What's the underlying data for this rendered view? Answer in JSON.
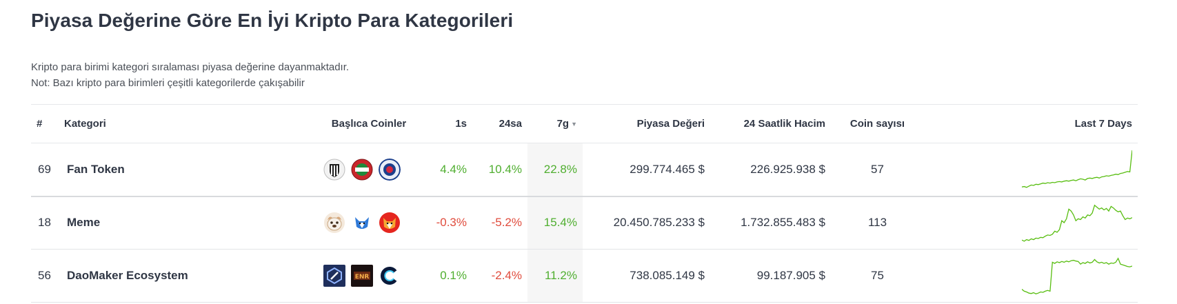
{
  "page": {
    "title": "Piyasa Değerine Göre En İyi Kripto Para Kategorileri",
    "desc_line1": "Kripto para birimi kategori sıralaması piyasa değerine dayanmaktadır.",
    "desc_line2": "Not: Bazı kripto para birimleri çeşitli kategorilerde çakışabilir"
  },
  "table": {
    "headers": {
      "rank": "#",
      "category": "Kategori",
      "top_coins": "Başlıca Coinler",
      "h1": "1s",
      "h24": "24sa",
      "d7": "7g",
      "market_cap": "Piyasa Değeri",
      "volume": "24 Saatlik Hacim",
      "coin_count": "Coin sayısı",
      "last7": "Last 7 Days"
    },
    "sort_column": "7g",
    "rows": [
      {
        "rank": "69",
        "name": "Fan Token",
        "coin_icons": [
          "santos-fc-icon",
          "karsiyaka-icon",
          "rangers-fc-icon"
        ],
        "h1": "4.4%",
        "h24": "10.4%",
        "d7": "22.8%",
        "h1_dir": "up",
        "h24_dir": "up",
        "d7_dir": "up",
        "market_cap": "299.774.465 $",
        "volume": "226.925.938 $",
        "coin_count": "57",
        "trend": [
          0.05,
          0.06,
          0.04,
          0.07,
          0.1,
          0.09,
          0.12,
          0.11,
          0.13,
          0.15,
          0.14,
          0.16,
          0.15,
          0.17,
          0.16,
          0.18,
          0.19,
          0.18,
          0.2,
          0.21,
          0.2,
          0.22,
          0.23,
          0.21,
          0.24,
          0.26,
          0.25,
          0.23,
          0.27,
          0.28,
          0.27,
          0.29,
          0.3,
          0.28,
          0.31,
          0.32,
          0.34,
          0.33,
          0.35,
          0.36,
          0.38,
          0.37,
          0.4,
          0.41,
          0.43,
          0.45,
          0.44,
          1.0
        ]
      },
      {
        "rank": "18",
        "name": "Meme",
        "coin_icons": [
          "dogecoin-icon",
          "shiba-inu-icon",
          "shiba-inu-red-icon"
        ],
        "h1": "-0.3%",
        "h24": "-5.2%",
        "d7": "15.4%",
        "h1_dir": "down",
        "h24_dir": "down",
        "d7_dir": "up",
        "market_cap": "20.450.785.233 $",
        "volume": "1.732.855.483 $",
        "coin_count": "113",
        "trend": [
          0.05,
          0.02,
          0.06,
          0.04,
          0.08,
          0.06,
          0.1,
          0.09,
          0.12,
          0.11,
          0.15,
          0.18,
          0.17,
          0.2,
          0.28,
          0.25,
          0.32,
          0.55,
          0.5,
          0.6,
          0.85,
          0.8,
          0.7,
          0.55,
          0.6,
          0.58,
          0.65,
          0.62,
          0.7,
          0.68,
          0.75,
          0.95,
          0.9,
          0.85,
          0.88,
          0.83,
          0.87,
          0.8,
          0.92,
          0.88,
          0.82,
          0.78,
          0.8,
          0.68,
          0.58,
          0.62,
          0.6,
          0.63
        ]
      },
      {
        "rank": "56",
        "name": "DaoMaker Ecosystem",
        "coin_icons": [
          "dao-maker-icon",
          "imx-game-icon",
          "c-token-icon"
        ],
        "h1": "0.1%",
        "h24": "-2.4%",
        "d7": "11.2%",
        "h1_dir": "up",
        "h24_dir": "down",
        "d7_dir": "up",
        "market_cap": "738.085.149 $",
        "volume": "99.187.905 $",
        "coin_count": "75",
        "trend": [
          0.15,
          0.1,
          0.08,
          0.05,
          0.04,
          0.06,
          0.03,
          0.05,
          0.08,
          0.07,
          0.1,
          0.12,
          0.1,
          0.85,
          0.82,
          0.86,
          0.84,
          0.87,
          0.85,
          0.88,
          0.86,
          0.89,
          0.9,
          0.88,
          0.87,
          0.8,
          0.84,
          0.82,
          0.86,
          0.83,
          0.85,
          0.92,
          0.86,
          0.83,
          0.85,
          0.82,
          0.84,
          0.8,
          0.83,
          0.82,
          0.85,
          0.95,
          0.8,
          0.78,
          0.76,
          0.74,
          0.73,
          0.75
        ]
      }
    ]
  }
}
